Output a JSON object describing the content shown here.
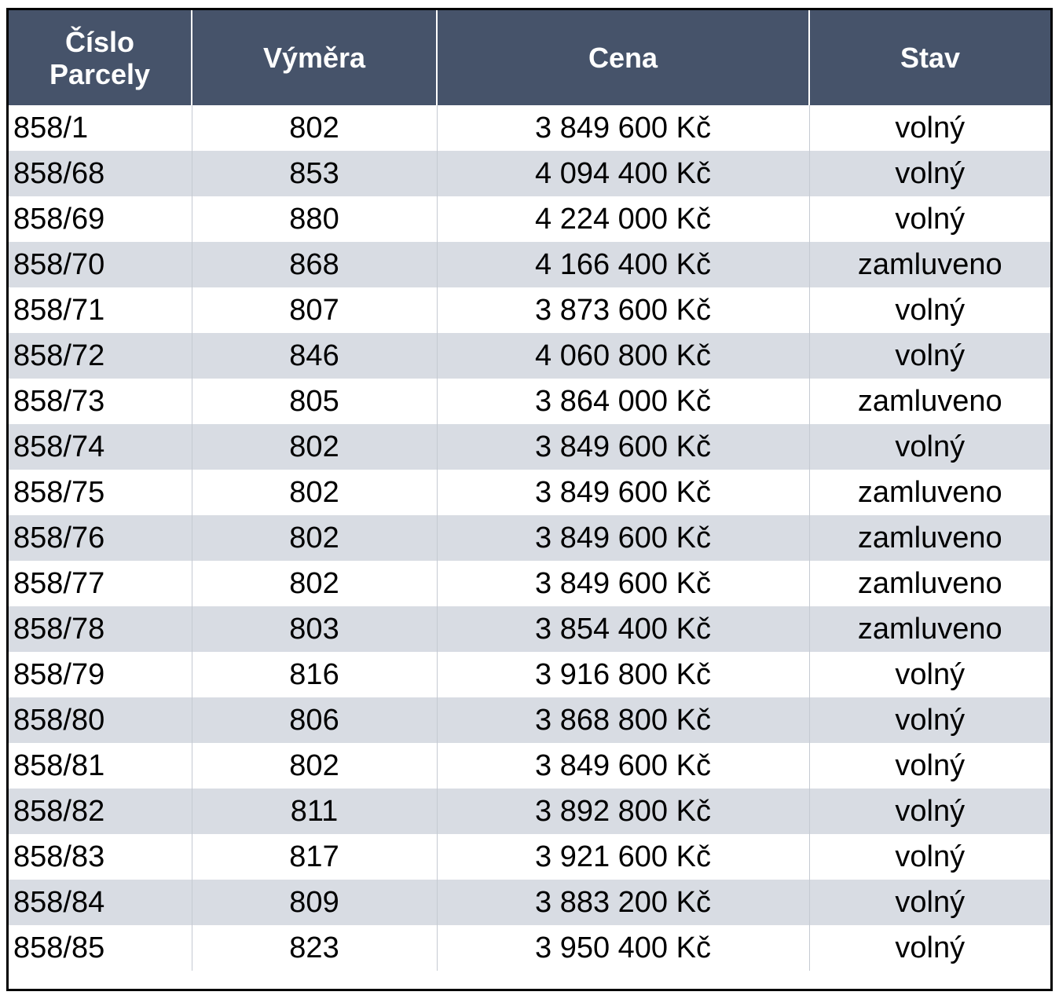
{
  "table": {
    "headers": {
      "parcel_line1": "Číslo",
      "parcel_line2": "Parcely",
      "area": "Výměra",
      "price": "Cena",
      "status": "Stav"
    },
    "rows": [
      {
        "parcel": "858/1",
        "area": "802",
        "price": "3 849 600 Kč",
        "status": "volný"
      },
      {
        "parcel": "858/68",
        "area": "853",
        "price": "4 094 400 Kč",
        "status": "volný"
      },
      {
        "parcel": "858/69",
        "area": "880",
        "price": "4 224 000 Kč",
        "status": "volný"
      },
      {
        "parcel": "858/70",
        "area": "868",
        "price": "4 166 400 Kč",
        "status": "zamluveno"
      },
      {
        "parcel": "858/71",
        "area": "807",
        "price": "3 873 600 Kč",
        "status": "volný"
      },
      {
        "parcel": "858/72",
        "area": "846",
        "price": "4 060 800 Kč",
        "status": "volný"
      },
      {
        "parcel": "858/73",
        "area": "805",
        "price": "3 864 000 Kč",
        "status": "zamluveno"
      },
      {
        "parcel": "858/74",
        "area": "802",
        "price": "3 849 600 Kč",
        "status": "volný"
      },
      {
        "parcel": "858/75",
        "area": "802",
        "price": "3 849 600 Kč",
        "status": "zamluveno"
      },
      {
        "parcel": "858/76",
        "area": "802",
        "price": "3 849 600 Kč",
        "status": "zamluveno"
      },
      {
        "parcel": "858/77",
        "area": "802",
        "price": "3 849 600 Kč",
        "status": "zamluveno"
      },
      {
        "parcel": "858/78",
        "area": "803",
        "price": "3 854 400 Kč",
        "status": "zamluveno"
      },
      {
        "parcel": "858/79",
        "area": "816",
        "price": "3 916 800 Kč",
        "status": "volný"
      },
      {
        "parcel": "858/80",
        "area": "806",
        "price": "3 868 800 Kč",
        "status": "volný"
      },
      {
        "parcel": "858/81",
        "area": "802",
        "price": "3 849 600 Kč",
        "status": "volný"
      },
      {
        "parcel": "858/82",
        "area": "811",
        "price": "3 892 800 Kč",
        "status": "volný"
      },
      {
        "parcel": "858/83",
        "area": "817",
        "price": "3 921 600 Kč",
        "status": "volný"
      },
      {
        "parcel": "858/84",
        "area": "809",
        "price": "3 883 200 Kč",
        "status": "volný"
      },
      {
        "parcel": "858/85",
        "area": "823",
        "price": "3 950 400 Kč",
        "status": "volný"
      }
    ]
  },
  "colors": {
    "header_bg": "#46536a",
    "header_text": "#ffffff",
    "row_stripe": "#d8dce3",
    "row_plain": "#ffffff"
  }
}
